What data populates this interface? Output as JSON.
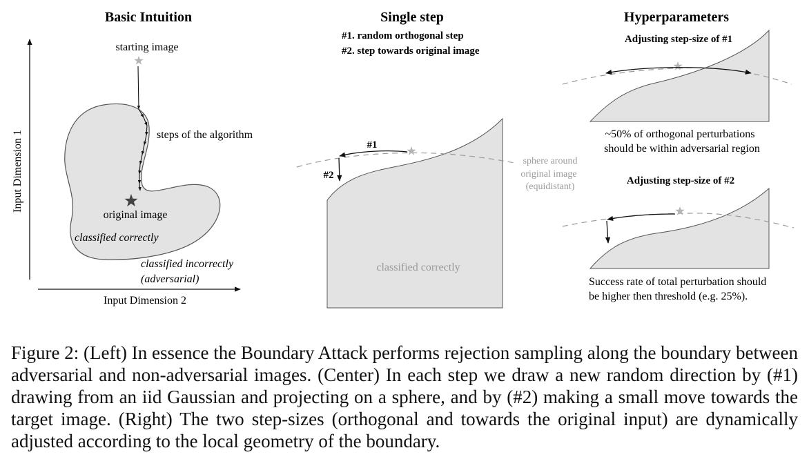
{
  "panels": {
    "left": {
      "title": "Basic Intuition",
      "y_axis_label": "Input Dimension 1",
      "x_axis_label": "Input Dimension 2",
      "starting_image_label": "starting image",
      "steps_label": "steps of the algorithm",
      "original_image_label": "original image",
      "classified_correctly_label": "classified correctly",
      "classified_incorrectly_line1": "classified incorrectly",
      "classified_incorrectly_line2": "(adversarial)"
    },
    "center": {
      "title": "Single step",
      "step1_desc": "#1. random orthogonal step",
      "step2_desc": "#2. step towards original image",
      "step1_tag": "#1",
      "step2_tag": "#2",
      "sphere_line1": "sphere around",
      "sphere_line2": "original image",
      "sphere_line3": "(equidistant)",
      "region_label": "classified correctly"
    },
    "right": {
      "title": "Hyperparameters",
      "sub1_title": "Adjusting step-size of #1",
      "sub1_note_line1": "~50% of orthogonal perturbations",
      "sub1_note_line2": "should be within adversarial region",
      "sub2_title": "Adjusting step-size of #2",
      "sub2_note_line1": "Success rate of total perturbation should",
      "sub2_note_line2": "be higher then threshold (e.g. 25%)."
    }
  },
  "caption": "Figure 2: (Left) In essence the Boundary Attack performs rejection sampling along the boundary between adversarial and non-adversarial images. (Center) In each step we draw a new random direction by (#1) drawing from an iid Gaussian and projecting on a sphere, and by (#2) making a small move towards the target image. (Right) The two step-sizes (orthogonal and towards the original input) are dynamically adjusted according to the local geometry of the boundary.",
  "colors": {
    "region_fill": "#e3e3e3",
    "region_stroke": "#555555",
    "star_light": "#b5b5b5",
    "star_dark": "#444444",
    "sphere_dash": "#9a9a9a",
    "muted_text": "#9a9a9a"
  }
}
